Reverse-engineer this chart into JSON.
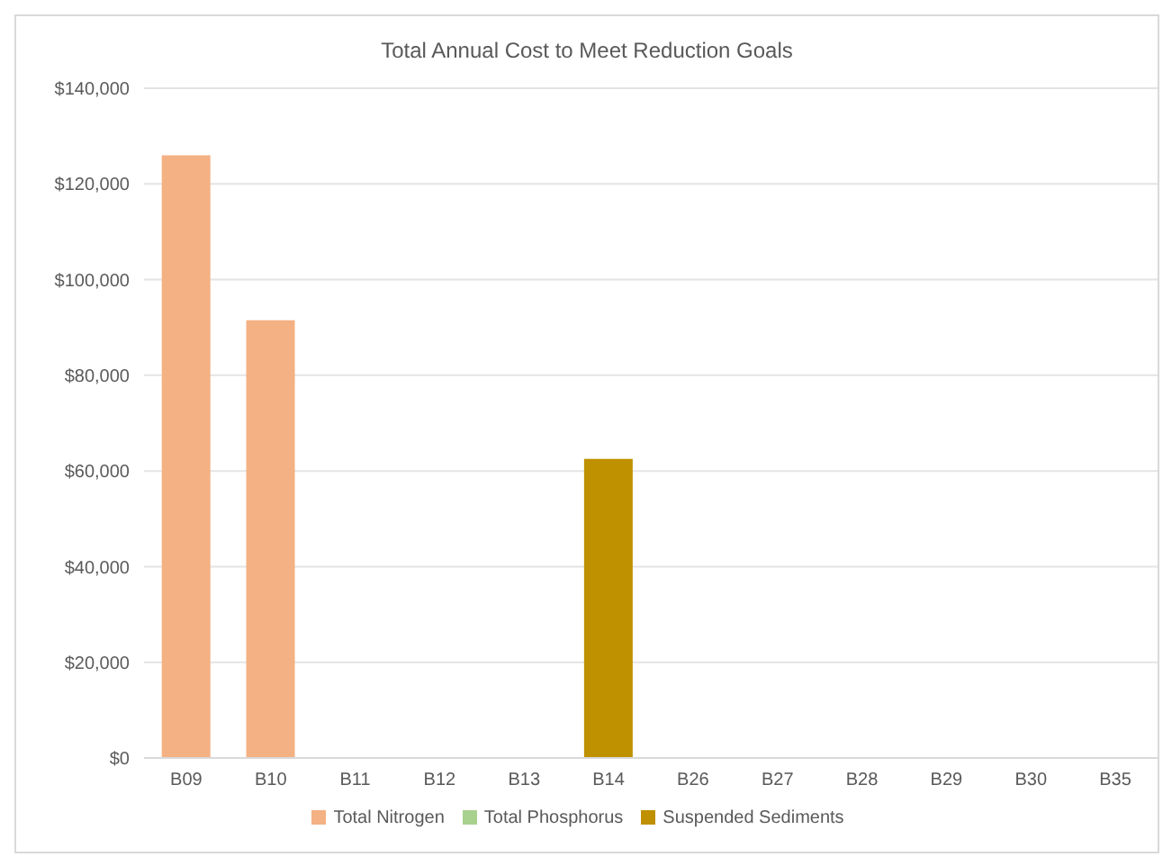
{
  "chart_data": {
    "type": "bar",
    "title": "Total Annual Cost to Meet Reduction Goals",
    "categories": [
      "B09",
      "B10",
      "B11",
      "B12",
      "B13",
      "B14",
      "B26",
      "B27",
      "B28",
      "B29",
      "B30",
      "B35"
    ],
    "series": [
      {
        "name": "Total Nitrogen",
        "color": "#f4b183",
        "values": [
          126000,
          91500,
          null,
          null,
          null,
          null,
          null,
          null,
          null,
          null,
          null,
          null
        ]
      },
      {
        "name": "Total Phosphorus",
        "color": "#a9d18e",
        "values": [
          null,
          null,
          null,
          null,
          null,
          null,
          null,
          null,
          null,
          null,
          null,
          null
        ]
      },
      {
        "name": "Suspended Sediments",
        "color": "#bf9000",
        "values": [
          null,
          null,
          null,
          null,
          null,
          62500,
          null,
          null,
          null,
          null,
          null,
          null
        ]
      }
    ],
    "stacked": true,
    "ylim": [
      0,
      140000
    ],
    "yticks": [
      {
        "value": 0,
        "label": "$0"
      },
      {
        "value": 20000,
        "label": "$20,000"
      },
      {
        "value": 40000,
        "label": "$40,000"
      },
      {
        "value": 60000,
        "label": "$60,000"
      },
      {
        "value": 80000,
        "label": "$80,000"
      },
      {
        "value": 100000,
        "label": "$100,000"
      },
      {
        "value": 120000,
        "label": "$120,000"
      },
      {
        "value": 140000,
        "label": "$140,000"
      }
    ],
    "grid": "y",
    "legend": "bottom"
  }
}
